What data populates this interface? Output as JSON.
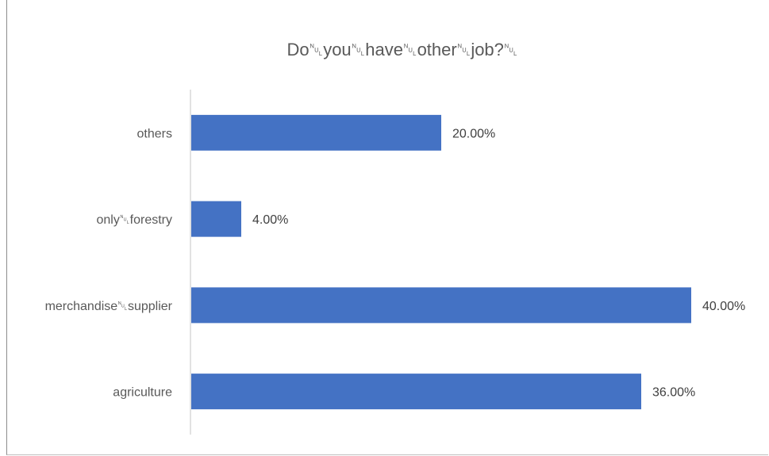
{
  "chart_data": {
    "type": "bar",
    "orientation": "horizontal",
    "title": "Do␀you␀have␀other␀job?␀",
    "categories": [
      "agriculture",
      "merchandise␀supplier",
      "only␀forestry",
      "others"
    ],
    "values": [
      36,
      40,
      4,
      20
    ],
    "value_labels": [
      "36.00%",
      "40.00%",
      "4.00%",
      "20.00%"
    ],
    "unit": "%",
    "xlim": [
      0,
      40
    ],
    "grid": false,
    "legend": "none",
    "bar_color": "#4472C4",
    "axis_color": "#D9D9D9",
    "text_color": "#595959"
  }
}
